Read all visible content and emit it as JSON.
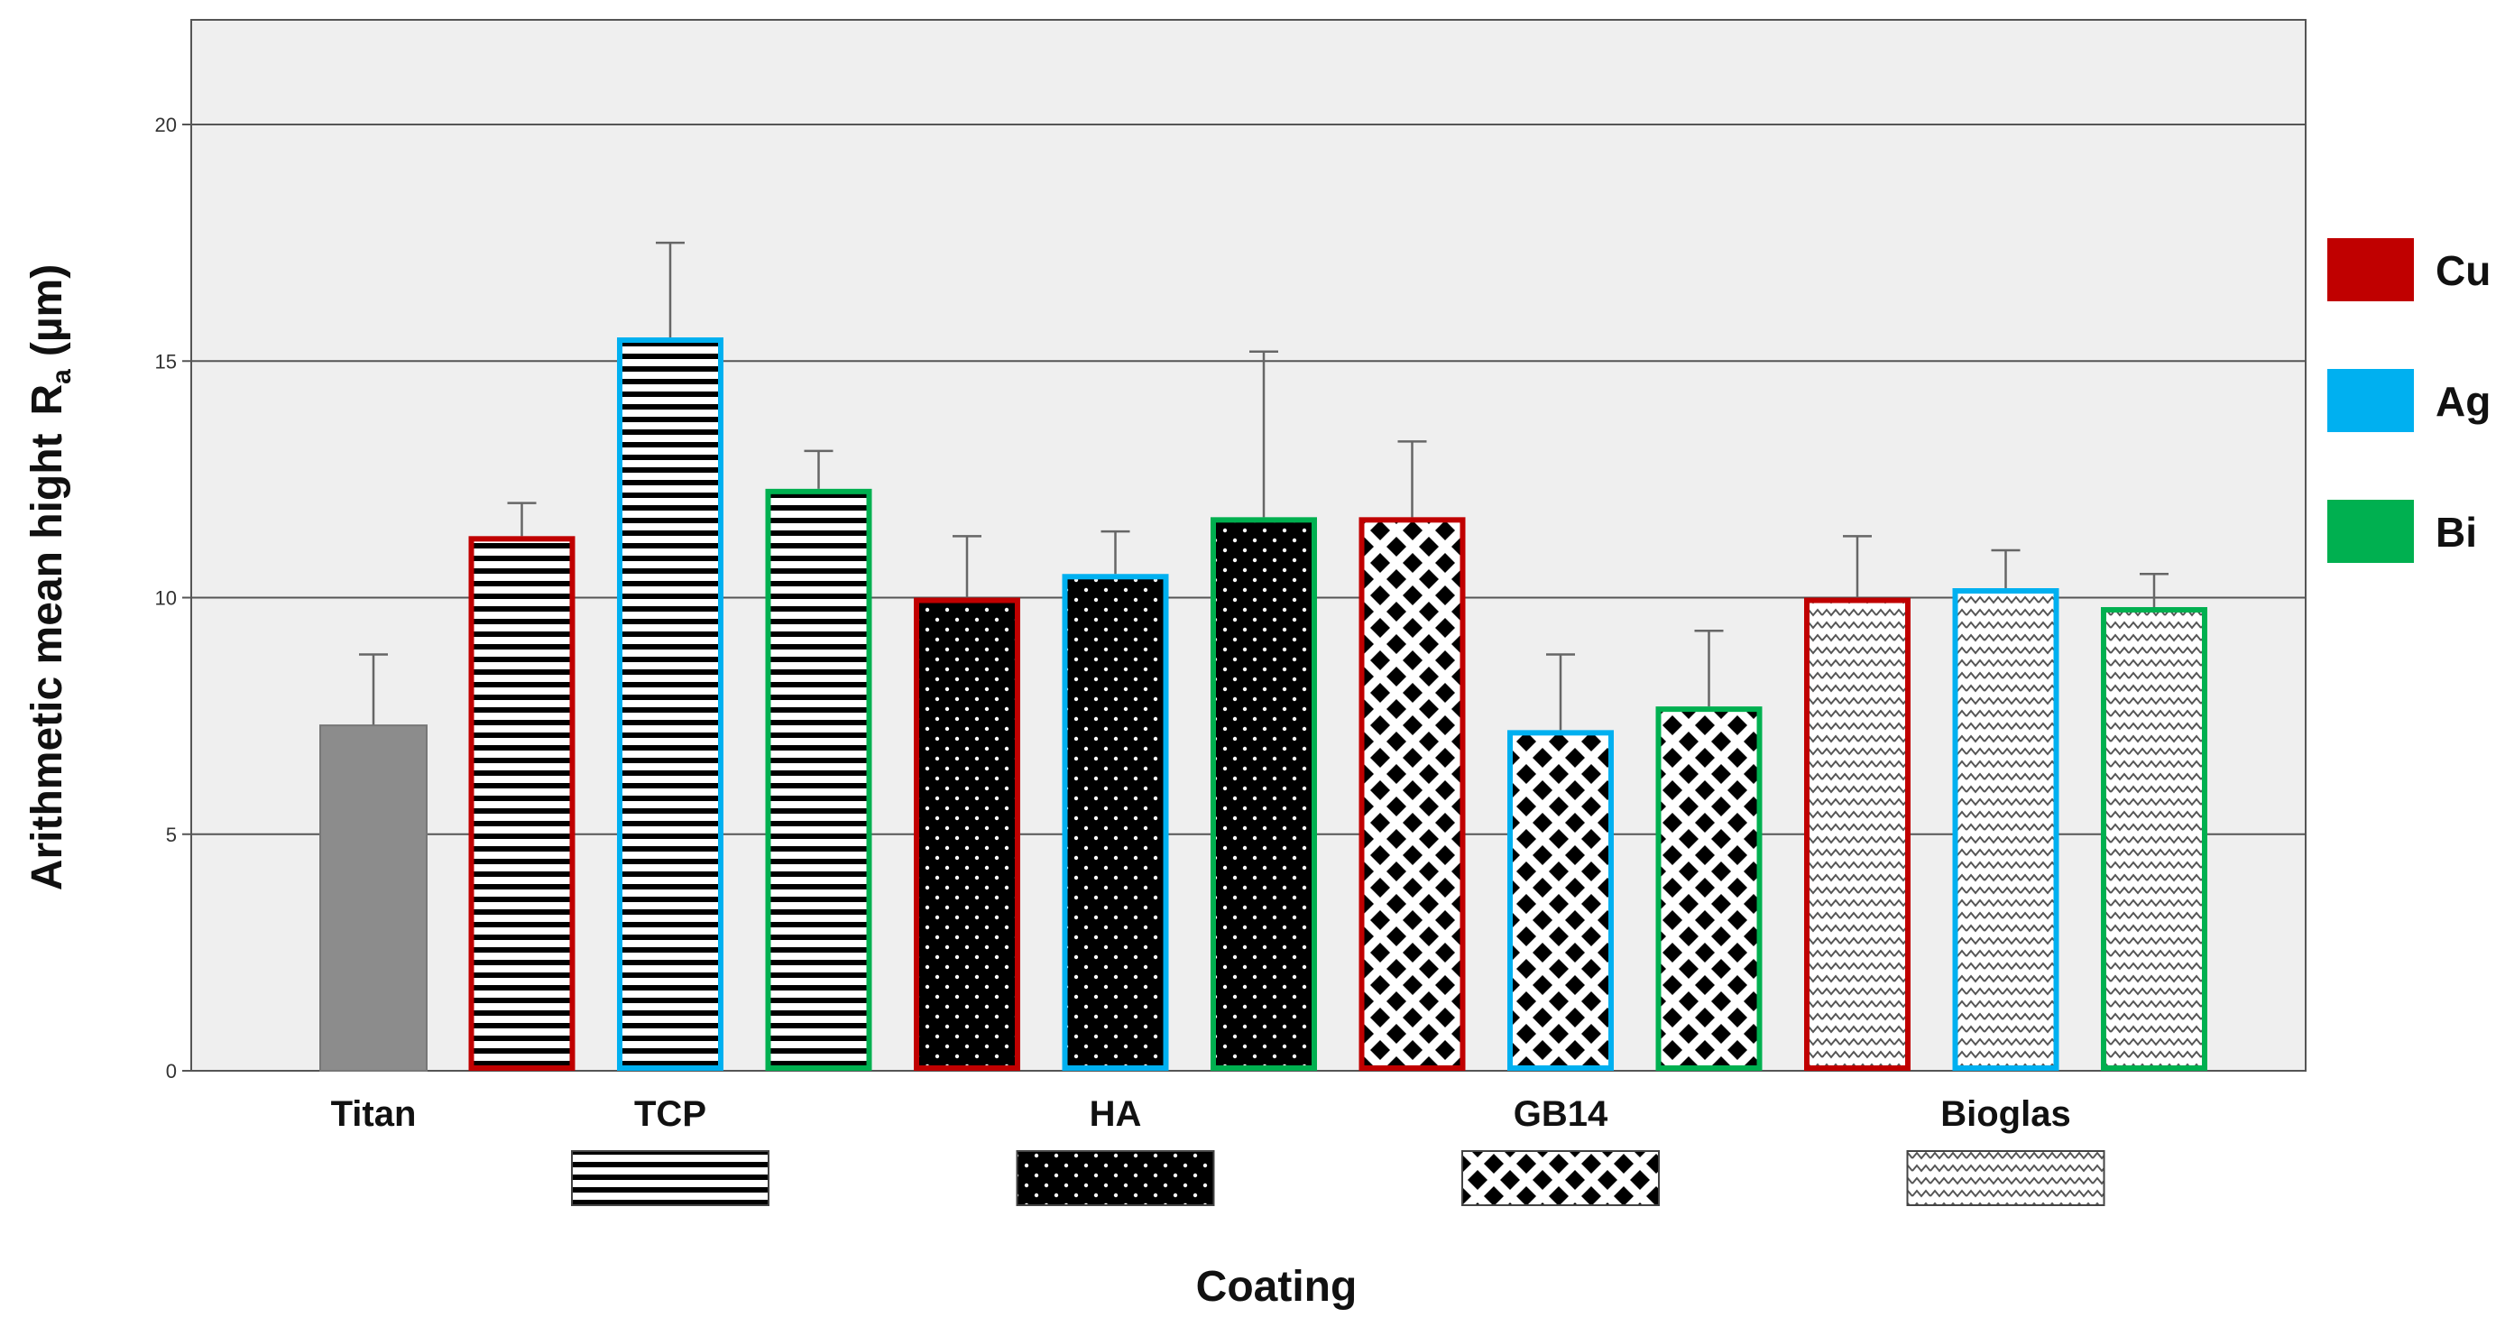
{
  "chart_data": {
    "type": "bar",
    "title": "",
    "xlabel": "Coating",
    "ylabel": "Arithmetic mean hight",
    "ylabel_symbol": "R",
    "ylabel_subscript": "a",
    "ylabel_unit": "(µm)",
    "ylim": [
      0,
      22
    ],
    "yticks": [
      0,
      5,
      10,
      15,
      20
    ],
    "grid": true,
    "legend_position": "right",
    "legend": [
      {
        "label": "Cu",
        "color": "#c00000"
      },
      {
        "label": "Ag",
        "color": "#00b0f0"
      },
      {
        "label": "Bi",
        "color": "#00b050"
      }
    ],
    "groups": [
      {
        "label": "Titan",
        "pattern": "solid"
      },
      {
        "label": "TCP",
        "pattern": "stripes"
      },
      {
        "label": "HA",
        "pattern": "dots"
      },
      {
        "label": "GB14",
        "pattern": "checker"
      },
      {
        "label": "Bioglas",
        "pattern": "wave"
      }
    ],
    "bars": [
      {
        "group": "Titan",
        "metal": "",
        "value": 7.3,
        "error": 1.5
      },
      {
        "group": "TCP",
        "metal": "Cu",
        "value": 11.3,
        "error": 0.7
      },
      {
        "group": "TCP",
        "metal": "Ag",
        "value": 15.5,
        "error": 2.0
      },
      {
        "group": "TCP",
        "metal": "Bi",
        "value": 12.3,
        "error": 0.8
      },
      {
        "group": "HA",
        "metal": "Cu",
        "value": 10.0,
        "error": 1.3
      },
      {
        "group": "HA",
        "metal": "Ag",
        "value": 10.5,
        "error": 0.9
      },
      {
        "group": "HA",
        "metal": "Bi",
        "value": 11.7,
        "error": 3.5
      },
      {
        "group": "GB14",
        "metal": "Cu",
        "value": 11.7,
        "error": 1.6
      },
      {
        "group": "GB14",
        "metal": "Ag",
        "value": 7.2,
        "error": 1.6
      },
      {
        "group": "GB14",
        "metal": "Bi",
        "value": 7.7,
        "error": 1.6
      },
      {
        "group": "Bioglas",
        "metal": "Cu",
        "value": 10.0,
        "error": 1.3
      },
      {
        "group": "Bioglas",
        "metal": "Ag",
        "value": 10.2,
        "error": 0.8
      },
      {
        "group": "Bioglas",
        "metal": "Bi",
        "value": 9.8,
        "error": 0.7
      }
    ],
    "titan_color": "#8c8c8c"
  }
}
